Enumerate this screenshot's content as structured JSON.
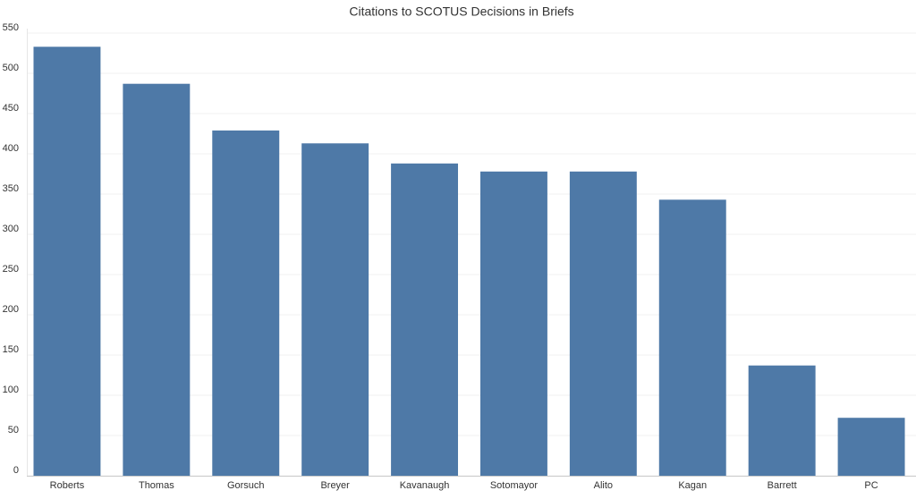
{
  "chart_data": {
    "type": "bar",
    "title": "Citations to SCOTUS Decisions in Briefs",
    "categories": [
      "Roberts",
      "Thomas",
      "Gorsuch",
      "Breyer",
      "Kavanaugh",
      "Sotomayor",
      "Alito",
      "Kagan",
      "Barrett",
      "PC"
    ],
    "values": [
      533,
      487,
      429,
      413,
      388,
      378,
      378,
      343,
      137,
      72
    ],
    "color": "#4e79a7",
    "ylim": [
      0,
      550
    ],
    "yticks": [
      0,
      50,
      100,
      150,
      200,
      250,
      300,
      350,
      400,
      450,
      500,
      550
    ],
    "grid": true
  }
}
